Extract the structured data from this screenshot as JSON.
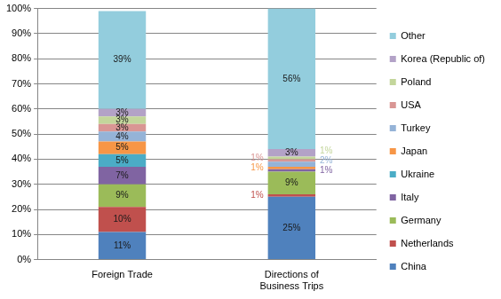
{
  "chart_data": {
    "type": "bar",
    "stacked": true,
    "data_labels": true,
    "grid": true,
    "legend": "right",
    "categories": [
      "Foreign Trade",
      "Directions of Business Trips"
    ],
    "series": [
      {
        "name": "China",
        "color": "#4f81bd",
        "values": [
          11,
          25
        ],
        "value_labels": [
          "11%",
          "25%"
        ]
      },
      {
        "name": "Netherlands",
        "color": "#c0504d",
        "values": [
          10,
          1
        ],
        "value_labels": [
          "10%",
          "1%"
        ]
      },
      {
        "name": "Germany",
        "color": "#9bbb59",
        "values": [
          9,
          9
        ],
        "value_labels": [
          "9%",
          "9%"
        ]
      },
      {
        "name": "Italy",
        "color": "#8064a2",
        "values": [
          7,
          1
        ],
        "value_labels": [
          "7%",
          "1%"
        ]
      },
      {
        "name": "Ukraine",
        "color": "#4bacc6",
        "values": [
          5,
          null
        ],
        "value_labels": [
          "5%",
          null
        ]
      },
      {
        "name": "Japan",
        "color": "#f79646",
        "values": [
          5,
          1
        ],
        "value_labels": [
          "5%",
          "1%"
        ]
      },
      {
        "name": "Turkey",
        "color": "#95b3d7",
        "values": [
          4,
          2
        ],
        "value_labels": [
          "4%",
          "2%"
        ]
      },
      {
        "name": "USA",
        "color": "#d99694",
        "values": [
          3,
          1
        ],
        "value_labels": [
          "3%",
          "1%"
        ]
      },
      {
        "name": "Poland",
        "color": "#c3d69b",
        "values": [
          3,
          1
        ],
        "value_labels": [
          "3%",
          "1%"
        ]
      },
      {
        "name": "Korea (Republic of)",
        "color": "#b3a2c7",
        "values": [
          3,
          3
        ],
        "value_labels": [
          "3%",
          "3%"
        ]
      },
      {
        "name": "Other",
        "color": "#93cddd",
        "values": [
          39,
          56
        ],
        "value_labels": [
          "39%",
          "56%"
        ]
      }
    ],
    "ylim": [
      0,
      100
    ],
    "yticks": [
      {
        "value": 0,
        "label": "0%"
      },
      {
        "value": 10,
        "label": "10%"
      },
      {
        "value": 20,
        "label": "20%"
      },
      {
        "value": 30,
        "label": "30%"
      },
      {
        "value": 40,
        "label": "40%"
      },
      {
        "value": 50,
        "label": "50%"
      },
      {
        "value": 60,
        "label": "60%"
      },
      {
        "value": 70,
        "label": "70%"
      },
      {
        "value": 80,
        "label": "80%"
      },
      {
        "value": 90,
        "label": "90%"
      },
      {
        "value": 100,
        "label": "100%"
      }
    ]
  }
}
